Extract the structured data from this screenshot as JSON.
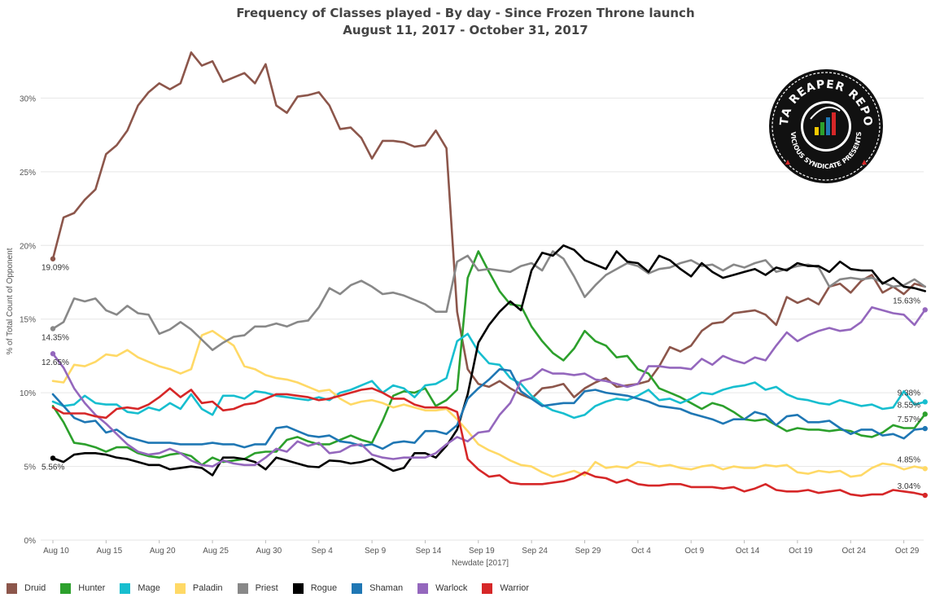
{
  "chart_data": {
    "type": "line",
    "title": "Frequency of Classes played - By day - Since Frozen Throne launch",
    "subtitle": "August 11, 2017 - October 31, 2017",
    "xlabel": "Newdate [2017]",
    "ylabel": "% of Total Count of Opponent",
    "x_start": "Aug 10",
    "x_ticks": [
      "Aug 10",
      "Aug 15",
      "Aug 20",
      "Aug 25",
      "Aug 30",
      "Sep 4",
      "Sep 9",
      "Sep 14",
      "Sep 19",
      "Sep 24",
      "Sep 29",
      "Oct 4",
      "Oct 9",
      "Oct 14",
      "Oct 19",
      "Oct 24",
      "Oct 29"
    ],
    "y_ticks": [
      "0%",
      "5%",
      "10%",
      "15%",
      "20%",
      "25%",
      "30%"
    ],
    "ylim": [
      0,
      35
    ],
    "grid": "horizontal",
    "legend_position": "bottom",
    "series": [
      {
        "name": "Druid",
        "color": "#8c564b",
        "start_label": "19.09%",
        "end_label": "",
        "values": [
          19.09,
          21.9,
          22.2,
          23.1,
          23.8,
          26.2,
          26.8,
          27.8,
          29.5,
          30.4,
          31.0,
          30.6,
          31.0,
          33.1,
          32.2,
          32.5,
          31.1,
          31.4,
          31.7,
          31.0,
          32.3,
          29.5,
          29.0,
          30.1,
          30.2,
          30.4,
          29.5,
          27.9,
          28.0,
          27.3,
          25.9,
          27.1,
          27.1,
          27.0,
          26.7,
          26.8,
          27.8,
          26.6,
          15.5,
          11.6,
          10.6,
          10.4,
          10.8,
          10.3,
          9.9,
          9.6,
          10.3,
          10.4,
          10.6,
          9.7,
          10.3,
          10.7,
          11.0,
          10.4,
          10.5,
          10.6,
          10.8,
          11.8,
          13.1,
          12.8,
          13.2,
          14.2,
          14.7,
          14.8,
          15.4,
          15.5,
          15.6,
          15.3,
          14.6,
          16.5,
          16.1,
          16.4,
          16.0,
          17.2,
          17.4,
          16.8,
          17.6,
          18.0,
          16.8,
          17.2,
          16.7,
          17.4,
          17.2
        ]
      },
      {
        "name": "Hunter",
        "color": "#2ca02c",
        "start_label": "",
        "end_label": "8.55%",
        "values": [
          9.1,
          8.0,
          6.6,
          6.5,
          6.3,
          6.0,
          6.3,
          6.3,
          5.9,
          5.7,
          5.6,
          5.8,
          5.9,
          5.7,
          5.1,
          5.6,
          5.3,
          5.4,
          5.5,
          5.9,
          6.0,
          6.0,
          6.8,
          7.0,
          6.7,
          6.5,
          6.5,
          6.8,
          7.1,
          6.8,
          6.6,
          8.1,
          9.8,
          10.1,
          10.0,
          10.3,
          9.1,
          9.5,
          10.2,
          17.8,
          19.6,
          18.2,
          16.9,
          16.0,
          15.9,
          14.5,
          13.5,
          12.7,
          12.2,
          13.0,
          14.2,
          13.5,
          13.2,
          12.4,
          12.5,
          11.6,
          11.3,
          10.3,
          10.0,
          9.7,
          9.3,
          8.9,
          9.3,
          9.1,
          8.7,
          8.2,
          8.1,
          8.2,
          7.8,
          7.4,
          7.6,
          7.5,
          7.5,
          7.4,
          7.5,
          7.4,
          7.1,
          7.0,
          7.3,
          7.8,
          7.6,
          7.6,
          8.55
        ]
      },
      {
        "name": "Mage",
        "color": "#17becf",
        "start_label": "",
        "end_label": "9.38%",
        "values": [
          9.4,
          9.1,
          9.2,
          9.8,
          9.3,
          9.2,
          9.2,
          8.7,
          8.6,
          9.0,
          8.8,
          9.3,
          8.9,
          9.9,
          8.9,
          8.5,
          9.8,
          9.8,
          9.6,
          10.1,
          10.0,
          9.8,
          9.7,
          9.6,
          9.5,
          9.7,
          9.5,
          10.0,
          10.2,
          10.5,
          10.8,
          10.0,
          10.5,
          10.3,
          9.7,
          10.5,
          10.6,
          11.0,
          13.5,
          14.0,
          12.8,
          12.0,
          11.9,
          11.0,
          10.6,
          9.8,
          9.2,
          8.8,
          8.6,
          8.3,
          8.5,
          9.1,
          9.4,
          9.6,
          9.5,
          9.8,
          10.2,
          9.5,
          9.6,
          9.3,
          9.6,
          10.0,
          9.9,
          10.2,
          10.4,
          10.5,
          10.7,
          10.2,
          10.4,
          9.9,
          9.6,
          9.5,
          9.3,
          9.2,
          9.5,
          9.3,
          9.1,
          9.2,
          8.9,
          9.0,
          10.1,
          9.2,
          9.38
        ]
      },
      {
        "name": "Paladin",
        "color": "#ffd966",
        "start_label": "",
        "end_label": "4.85%",
        "values": [
          10.8,
          10.7,
          11.9,
          11.8,
          12.1,
          12.6,
          12.5,
          12.9,
          12.4,
          12.1,
          11.8,
          11.6,
          11.3,
          11.6,
          13.9,
          14.2,
          13.7,
          13.2,
          11.8,
          11.6,
          11.2,
          11.0,
          10.9,
          10.7,
          10.4,
          10.1,
          10.2,
          9.6,
          9.2,
          9.4,
          9.5,
          9.3,
          9.0,
          9.2,
          9.0,
          8.8,
          8.8,
          8.9,
          8.2,
          7.4,
          6.5,
          6.1,
          5.8,
          5.4,
          5.1,
          5.0,
          4.6,
          4.3,
          4.5,
          4.7,
          4.4,
          5.3,
          4.9,
          5.0,
          4.9,
          5.3,
          5.2,
          5.0,
          5.1,
          4.9,
          4.8,
          5.0,
          5.1,
          4.8,
          5.0,
          4.9,
          4.9,
          5.1,
          5.0,
          5.1,
          4.6,
          4.5,
          4.7,
          4.6,
          4.7,
          4.3,
          4.4,
          4.9,
          5.2,
          5.1,
          4.8,
          5.0,
          4.85
        ]
      },
      {
        "name": "Priest",
        "color": "#888888",
        "start_label": "14.35%",
        "end_label": "",
        "values": [
          14.35,
          14.8,
          16.4,
          16.2,
          16.4,
          15.6,
          15.3,
          15.9,
          15.4,
          15.3,
          14.0,
          14.3,
          14.8,
          14.3,
          13.6,
          12.9,
          13.4,
          13.8,
          13.9,
          14.5,
          14.5,
          14.7,
          14.5,
          14.8,
          14.9,
          15.8,
          17.1,
          16.7,
          17.3,
          17.6,
          17.2,
          16.7,
          16.8,
          16.6,
          16.3,
          16.0,
          15.5,
          15.5,
          18.9,
          19.3,
          18.3,
          18.4,
          18.3,
          18.2,
          18.6,
          18.8,
          18.3,
          19.6,
          19.1,
          17.9,
          16.5,
          17.3,
          18.0,
          18.4,
          18.8,
          18.6,
          18.1,
          18.4,
          18.5,
          18.8,
          19.0,
          18.6,
          18.7,
          18.3,
          18.7,
          18.5,
          18.8,
          19.0,
          18.2,
          18.4,
          18.6,
          18.7,
          18.5,
          17.2,
          17.7,
          17.8,
          17.7,
          17.8,
          17.5,
          17.2,
          17.3,
          17.7,
          17.2
        ]
      },
      {
        "name": "Rogue",
        "color": "#000000",
        "start_label": "5.56%",
        "end_label": "",
        "values": [
          5.56,
          5.3,
          5.8,
          5.9,
          5.9,
          5.8,
          5.6,
          5.5,
          5.3,
          5.1,
          5.1,
          4.8,
          4.9,
          5.0,
          4.9,
          4.4,
          5.6,
          5.6,
          5.5,
          5.3,
          4.8,
          5.6,
          5.4,
          5.2,
          5.0,
          4.95,
          5.4,
          5.35,
          5.2,
          5.3,
          5.5,
          5.1,
          4.7,
          4.9,
          5.9,
          5.9,
          5.6,
          6.4,
          7.5,
          9.9,
          13.4,
          14.6,
          15.5,
          16.2,
          15.6,
          18.3,
          19.5,
          19.3,
          20.0,
          19.7,
          19.0,
          18.7,
          18.4,
          19.6,
          18.9,
          18.8,
          18.2,
          19.3,
          19.0,
          18.4,
          17.9,
          18.8,
          18.2,
          17.8,
          18.0,
          18.2,
          18.4,
          18.0,
          18.5,
          18.3,
          18.8,
          18.6,
          18.6,
          18.2,
          18.9,
          18.4,
          18.3,
          18.3,
          17.4,
          17.8,
          17.2,
          17.1,
          16.9
        ]
      },
      {
        "name": "Shaman",
        "color": "#1f77b4",
        "start_label": "",
        "end_label": "7.57%",
        "values": [
          9.9,
          9.1,
          8.3,
          8.0,
          8.1,
          7.3,
          7.5,
          7.0,
          6.8,
          6.6,
          6.6,
          6.6,
          6.5,
          6.5,
          6.5,
          6.6,
          6.5,
          6.5,
          6.3,
          6.5,
          6.5,
          7.6,
          7.7,
          7.4,
          7.1,
          7.0,
          7.1,
          6.7,
          6.6,
          6.4,
          6.5,
          6.2,
          6.6,
          6.7,
          6.6,
          7.4,
          7.4,
          7.2,
          7.8,
          9.6,
          10.3,
          10.9,
          11.6,
          11.5,
          10.1,
          9.6,
          9.1,
          9.2,
          9.3,
          9.3,
          10.1,
          10.2,
          10.0,
          9.9,
          9.8,
          9.6,
          9.4,
          9.1,
          9.0,
          8.9,
          8.6,
          8.4,
          8.2,
          7.9,
          8.2,
          8.2,
          8.7,
          8.5,
          7.8,
          8.4,
          8.5,
          8.0,
          8.0,
          8.1,
          7.6,
          7.2,
          7.5,
          7.5,
          7.1,
          7.2,
          6.9,
          7.5,
          7.57
        ]
      },
      {
        "name": "Warlock",
        "color": "#9467bd",
        "start_label": "12.65%",
        "end_label": "15.63%",
        "values": [
          12.65,
          11.7,
          10.3,
          9.3,
          8.5,
          7.9,
          7.2,
          6.5,
          6.0,
          5.8,
          5.9,
          6.2,
          5.9,
          5.4,
          5.1,
          5.0,
          5.4,
          5.2,
          5.1,
          5.1,
          5.6,
          6.2,
          6.0,
          6.7,
          6.4,
          6.6,
          5.9,
          6.0,
          6.4,
          6.5,
          5.8,
          5.6,
          5.5,
          5.6,
          5.6,
          5.6,
          5.9,
          6.5,
          7.0,
          6.7,
          7.3,
          7.4,
          8.5,
          9.3,
          10.8,
          11.0,
          11.6,
          11.3,
          11.3,
          11.2,
          11.3,
          10.9,
          10.8,
          10.6,
          10.4,
          10.6,
          11.8,
          11.8,
          11.7,
          11.7,
          11.6,
          12.3,
          11.9,
          12.5,
          12.2,
          12.0,
          12.4,
          12.2,
          13.2,
          14.1,
          13.5,
          13.9,
          14.2,
          14.4,
          14.2,
          14.3,
          14.8,
          15.8,
          15.6,
          15.4,
          15.3,
          14.6,
          15.63
        ]
      },
      {
        "name": "Warrior",
        "color": "#d62728",
        "start_label": "",
        "end_label": "3.04%",
        "values": [
          9.0,
          8.6,
          8.6,
          8.6,
          8.4,
          8.3,
          8.9,
          9.0,
          8.9,
          9.2,
          9.7,
          10.3,
          9.7,
          10.2,
          9.3,
          9.4,
          8.8,
          8.9,
          9.2,
          9.3,
          9.6,
          9.9,
          9.9,
          9.8,
          9.7,
          9.5,
          9.6,
          9.8,
          10.0,
          10.2,
          10.3,
          10.0,
          9.6,
          9.6,
          9.2,
          9.0,
          9.0,
          9.0,
          8.7,
          5.5,
          4.8,
          4.3,
          4.4,
          3.9,
          3.8,
          3.8,
          3.8,
          3.9,
          4.0,
          4.2,
          4.6,
          4.3,
          4.2,
          3.9,
          4.1,
          3.8,
          3.7,
          3.7,
          3.8,
          3.8,
          3.6,
          3.6,
          3.6,
          3.5,
          3.6,
          3.3,
          3.5,
          3.8,
          3.4,
          3.3,
          3.3,
          3.4,
          3.2,
          3.3,
          3.4,
          3.1,
          3.0,
          3.1,
          3.1,
          3.4,
          3.3,
          3.2,
          3.04
        ]
      }
    ]
  },
  "logo": {
    "icon": "data-reaper-report-logo",
    "top_text": "DATA REAPER REPORT",
    "bottom_text": "VICIOUS SYNDICATE PRESENTS"
  }
}
